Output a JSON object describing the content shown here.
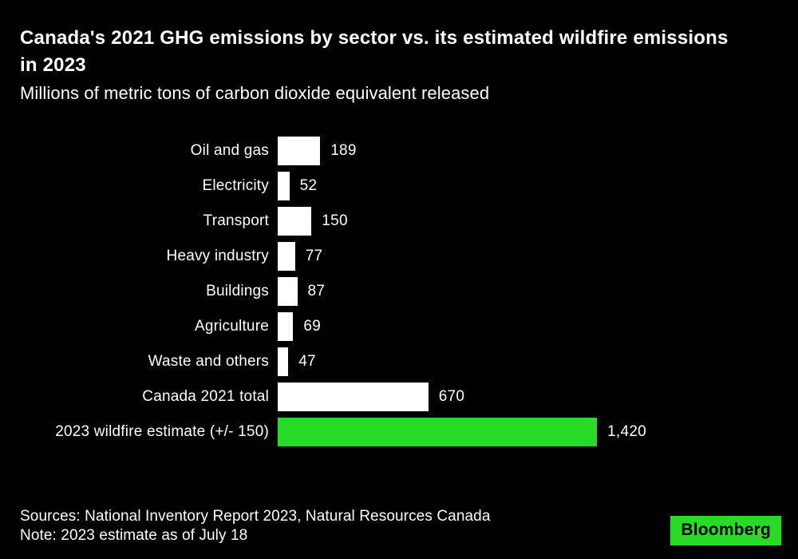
{
  "header": {
    "title": "Canada's 2021 GHG emissions by sector vs. its estimated wildfire emissions in 2023",
    "subtitle": "Millions of metric tons of carbon dioxide equivalent released"
  },
  "chart_data": {
    "type": "bar",
    "orientation": "horizontal",
    "title": "Canada's 2021 GHG emissions by sector vs. its estimated wildfire emissions in 2023",
    "subtitle": "Millions of metric tons of carbon dioxide equivalent released",
    "categories": [
      "Oil and gas",
      "Electricity",
      "Transport",
      "Heavy industry",
      "Buildings",
      "Agriculture",
      "Waste and others",
      "Canada 2021 total",
      "2023 wildfire estimate (+/- 150)"
    ],
    "values": [
      189,
      52,
      150,
      77,
      87,
      69,
      47,
      670,
      1420
    ],
    "value_labels": [
      "189",
      "52",
      "150",
      "77",
      "87",
      "69",
      "47",
      "670",
      "1,420"
    ],
    "xlim": [
      0,
      1420
    ],
    "grid": "off",
    "axis_ticks": "none",
    "bar_colors": {
      "default": "#ffffff",
      "highlight": "#27DB27"
    },
    "highlight_index": 8
  },
  "footer": {
    "sources": "Sources: National Inventory Report 2023, Natural Resources Canada",
    "note": "Note: 2023 estimate as of July 18",
    "logo": "Bloomberg"
  },
  "colors": {
    "background": "#000000",
    "text": "#ffffff",
    "accent_green": "#27DB27",
    "logo_text": "#000000"
  }
}
